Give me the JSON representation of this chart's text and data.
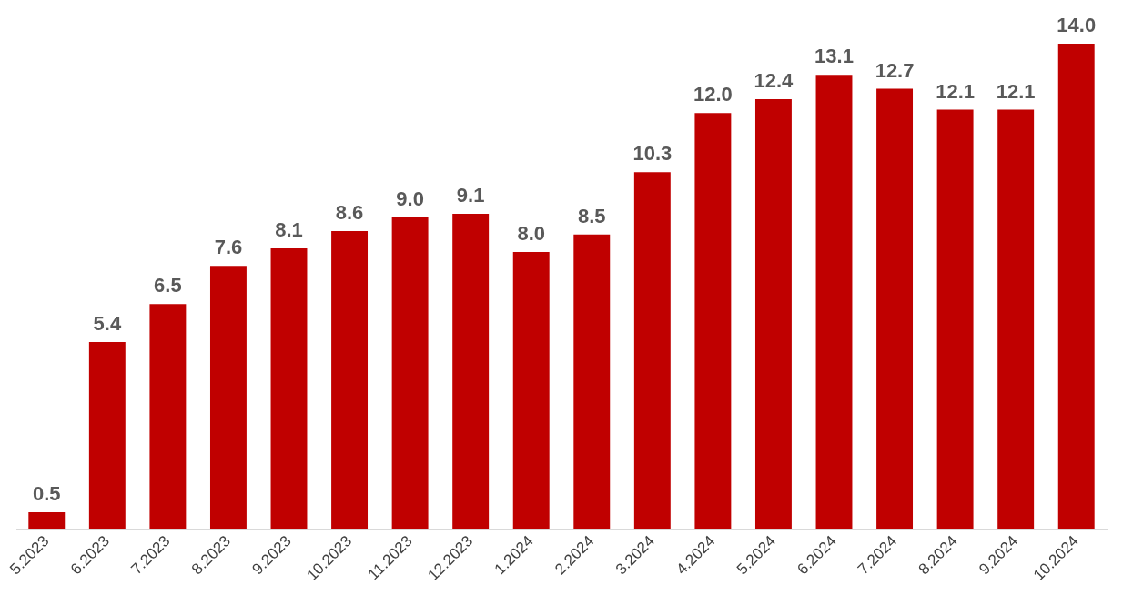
{
  "chart_data": {
    "type": "bar",
    "categories": [
      "5.2023",
      "6.2023",
      "7.2023",
      "8.2023",
      "9.2023",
      "10.2023",
      "11.2023",
      "12.2023",
      "1.2024",
      "2.2024",
      "3.2024",
      "4.2024",
      "5.2024",
      "6.2024",
      "7.2024",
      "8.2024",
      "9.2024",
      "10.2024"
    ],
    "values": [
      0.5,
      5.4,
      6.5,
      7.6,
      8.1,
      8.6,
      9.0,
      9.1,
      8.0,
      8.5,
      10.3,
      12.0,
      12.4,
      13.1,
      12.7,
      12.1,
      12.1,
      14.0
    ],
    "value_labels": [
      "0.5",
      "5.4",
      "6.5",
      "7.6",
      "8.1",
      "8.6",
      "9.0",
      "9.1",
      "8.0",
      "8.5",
      "10.3",
      "12.0",
      "12.4",
      "13.1",
      "12.7",
      "12.1",
      "12.1",
      "14.0"
    ],
    "color": "#c00000",
    "grid": false,
    "legend": false
  }
}
